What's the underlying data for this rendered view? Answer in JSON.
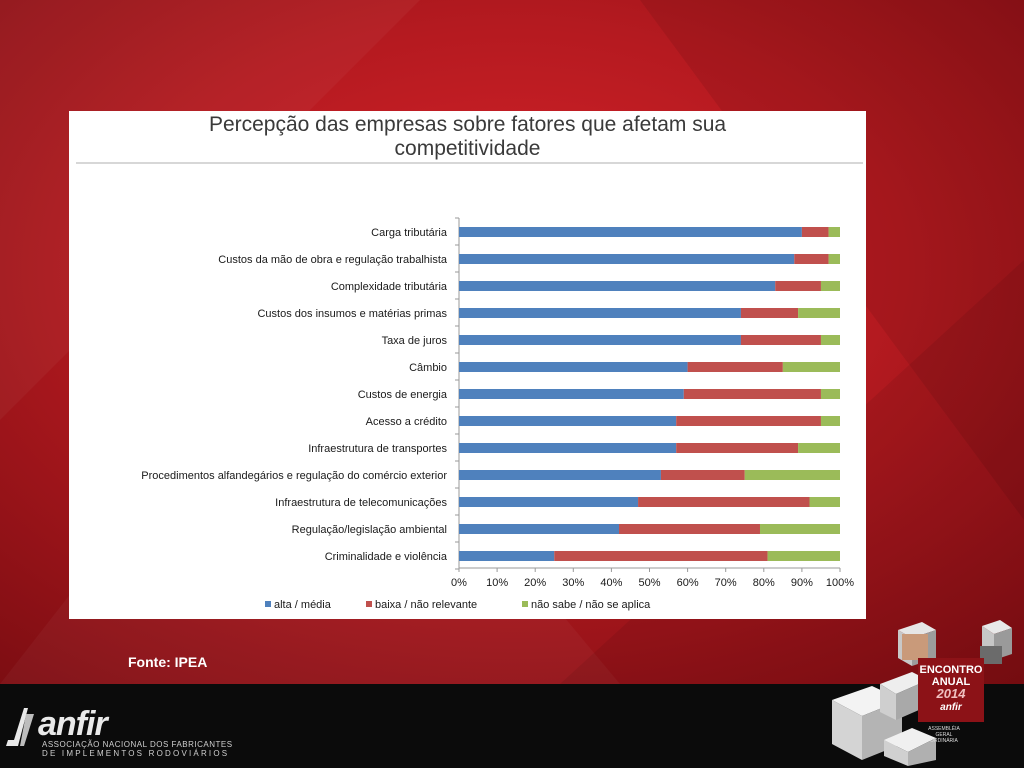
{
  "slide": {
    "source_note": "Fonte: IPEA"
  },
  "logo": {
    "name": "anfir",
    "line1": "ASSOCIAÇÃO NACIONAL DOS FABRICANTES",
    "line2": "DE IMPLEMENTOS RODOVIÁRIOS"
  },
  "event_badge": {
    "line1": "ENCONTRO",
    "line2": "ANUAL",
    "year": "2014",
    "brand": "anfir",
    "caption": "ASSEMBLÉIA GERAL ORDINÁRIA"
  },
  "colors": {
    "alta": "#4f81bd",
    "baixa": "#c0504d",
    "nao_sabe": "#9bbb59"
  },
  "chart_data": {
    "type": "bar",
    "orientation": "horizontal",
    "stacked": true,
    "title": "Percepção das empresas sobre fatores que afetam sua\ncompetitividade",
    "xlabel": "",
    "ylabel": "",
    "xlim": [
      0,
      100
    ],
    "x_ticks": [
      "0%",
      "10%",
      "20%",
      "30%",
      "40%",
      "50%",
      "60%",
      "70%",
      "80%",
      "90%",
      "100%"
    ],
    "legend_position": "bottom",
    "grid": false,
    "categories": [
      "Carga tributária",
      "Custos da mão de obra e regulação trabalhista",
      "Complexidade tributária",
      "Custos dos insumos e matérias primas",
      "Taxa de juros",
      "Câmbio",
      "Custos de energia",
      "Acesso a crédito",
      "Infraestrutura de transportes",
      "Procedimentos alfandegários e regulação do comércio exterior",
      "Infraestrutura de telecomunicações",
      "Regulação/legislação ambiental",
      "Criminalidade e violência"
    ],
    "series": [
      {
        "name": "alta / média",
        "color": "#4f81bd",
        "values": [
          90,
          88,
          83,
          74,
          74,
          60,
          59,
          57,
          57,
          53,
          47,
          42,
          25
        ]
      },
      {
        "name": "baixa / não relevante",
        "color": "#c0504d",
        "values": [
          7,
          9,
          12,
          15,
          21,
          25,
          36,
          38,
          32,
          22,
          45,
          37,
          56
        ]
      },
      {
        "name": "não sabe / não se aplica",
        "color": "#9bbb59",
        "values": [
          3,
          3,
          5,
          11,
          5,
          15,
          5,
          5,
          11,
          25,
          8,
          21,
          19
        ]
      }
    ]
  }
}
